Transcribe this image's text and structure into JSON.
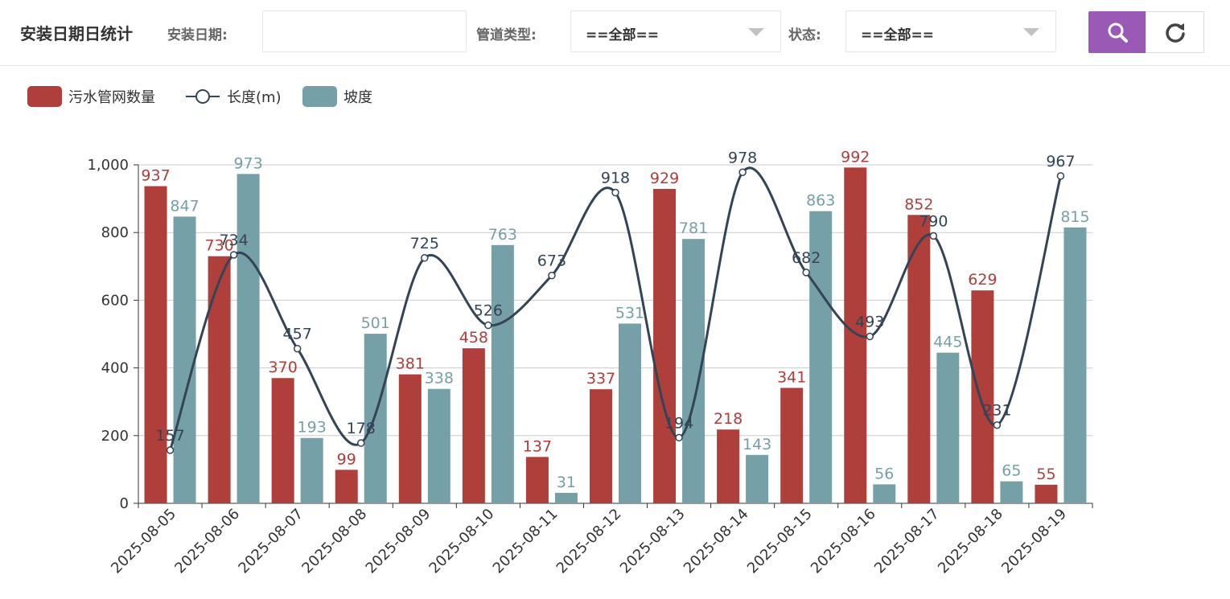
{
  "header": {
    "title": "安装日期日统计",
    "date_label": "安装日期:",
    "date_value": "",
    "pipe_type_label": "管道类型:",
    "pipe_type_value": "==全部==",
    "status_label": "状态:",
    "status_value": "==全部==",
    "search_icon": "search-icon",
    "refresh_icon": "refresh-icon",
    "accent_color": "#9b59b6"
  },
  "chart_data": {
    "type": "bar",
    "categories": [
      "2025-08-05",
      "2025-08-06",
      "2025-08-07",
      "2025-08-08",
      "2025-08-09",
      "2025-08-10",
      "2025-08-11",
      "2025-08-12",
      "2025-08-13",
      "2025-08-14",
      "2025-08-15",
      "2025-08-16",
      "2025-08-17",
      "2025-08-18",
      "2025-08-19"
    ],
    "series": [
      {
        "name": "污水管网数量",
        "type": "bar",
        "color": "#ae3f3a",
        "values": [
          937,
          730,
          370,
          99,
          381,
          458,
          137,
          337,
          929,
          218,
          341,
          992,
          852,
          629,
          55
        ]
      },
      {
        "name": "长度(m)",
        "type": "line",
        "smooth": true,
        "color": "#324456",
        "values": [
          157,
          734,
          457,
          178,
          725,
          526,
          673,
          918,
          194,
          978,
          682,
          493,
          790,
          231,
          967
        ]
      },
      {
        "name": "坡度",
        "type": "bar",
        "color": "#76a0a8",
        "values": [
          847,
          973,
          193,
          501,
          338,
          763,
          31,
          531,
          781,
          143,
          863,
          56,
          445,
          65,
          815
        ]
      }
    ],
    "ylim": [
      0,
      1000
    ],
    "yticks": [
      "0",
      "200",
      "400",
      "600",
      "800",
      "1,000"
    ],
    "grid": true,
    "legend_position": "top-left",
    "data_labels": true
  }
}
